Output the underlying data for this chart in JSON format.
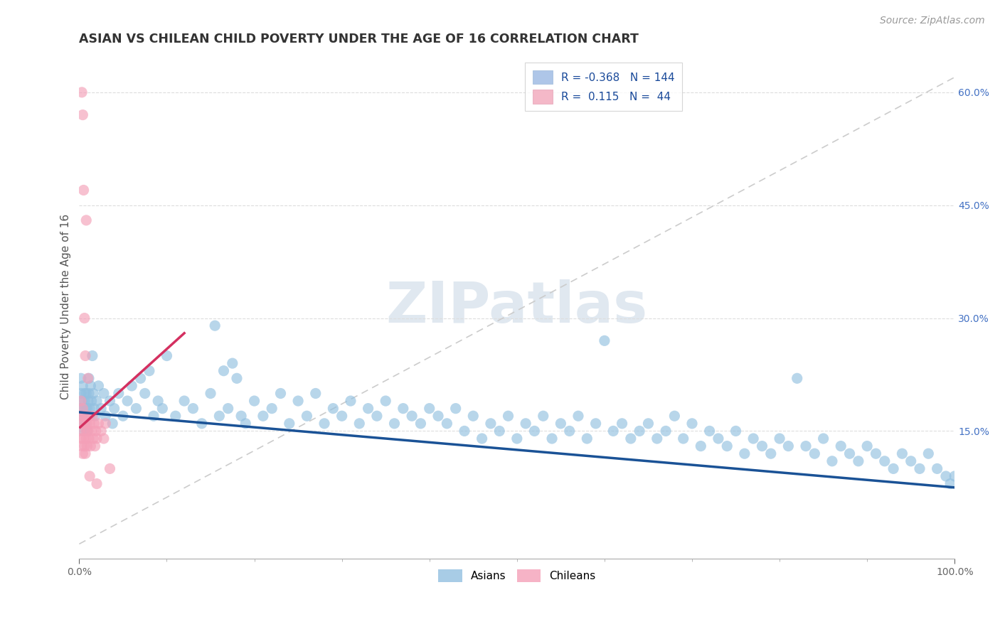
{
  "title": "ASIAN VS CHILEAN CHILD POVERTY UNDER THE AGE OF 16 CORRELATION CHART",
  "source": "Source: ZipAtlas.com",
  "ylabel": "Child Poverty Under the Age of 16",
  "xlim": [
    0.0,
    1.0
  ],
  "ylim": [
    -0.02,
    0.65
  ],
  "x_ticks": [
    0.0,
    1.0
  ],
  "x_tick_labels": [
    "0.0%",
    "100.0%"
  ],
  "y_ticks_right": [
    0.15,
    0.3,
    0.45,
    0.6
  ],
  "y_tick_labels_right": [
    "15.0%",
    "30.0%",
    "45.0%",
    "60.0%"
  ],
  "watermark_text": "ZIPatlas",
  "blue_dot_color": "#92c0e0",
  "pink_dot_color": "#f4a0b8",
  "blue_line_color": "#1a5296",
  "pink_line_color": "#d43060",
  "dashed_line_color": "#cccccc",
  "background_color": "#ffffff",
  "dot_alpha": 0.65,
  "dot_size": 120,
  "title_fontsize": 12.5,
  "source_fontsize": 10,
  "axis_label_fontsize": 11,
  "tick_fontsize": 10,
  "legend_fontsize": 11,
  "asian_x": [
    0.001,
    0.002,
    0.002,
    0.003,
    0.003,
    0.004,
    0.004,
    0.005,
    0.005,
    0.006,
    0.006,
    0.007,
    0.007,
    0.008,
    0.008,
    0.009,
    0.009,
    0.01,
    0.01,
    0.011,
    0.011,
    0.012,
    0.012,
    0.013,
    0.014,
    0.015,
    0.016,
    0.017,
    0.018,
    0.02,
    0.022,
    0.025,
    0.028,
    0.03,
    0.035,
    0.038,
    0.04,
    0.045,
    0.05,
    0.055,
    0.06,
    0.065,
    0.07,
    0.075,
    0.08,
    0.085,
    0.09,
    0.095,
    0.1,
    0.11,
    0.12,
    0.13,
    0.14,
    0.15,
    0.16,
    0.17,
    0.18,
    0.19,
    0.2,
    0.21,
    0.22,
    0.23,
    0.24,
    0.25,
    0.26,
    0.27,
    0.28,
    0.29,
    0.3,
    0.31,
    0.32,
    0.33,
    0.34,
    0.35,
    0.36,
    0.37,
    0.38,
    0.39,
    0.4,
    0.41,
    0.42,
    0.43,
    0.44,
    0.45,
    0.46,
    0.47,
    0.48,
    0.49,
    0.5,
    0.51,
    0.52,
    0.53,
    0.54,
    0.55,
    0.56,
    0.57,
    0.58,
    0.59,
    0.6,
    0.61,
    0.62,
    0.63,
    0.64,
    0.65,
    0.66,
    0.67,
    0.68,
    0.69,
    0.7,
    0.71,
    0.72,
    0.73,
    0.74,
    0.75,
    0.76,
    0.77,
    0.78,
    0.79,
    0.8,
    0.81,
    0.82,
    0.83,
    0.84,
    0.85,
    0.86,
    0.87,
    0.88,
    0.89,
    0.9,
    0.91,
    0.92,
    0.93,
    0.94,
    0.95,
    0.96,
    0.97,
    0.98,
    0.99,
    0.995,
    1.0,
    0.155,
    0.165,
    0.175,
    0.185
  ],
  "asian_y": [
    0.18,
    0.22,
    0.2,
    0.19,
    0.16,
    0.21,
    0.18,
    0.17,
    0.15,
    0.2,
    0.19,
    0.16,
    0.18,
    0.17,
    0.2,
    0.15,
    0.18,
    0.17,
    0.19,
    0.22,
    0.2,
    0.18,
    0.17,
    0.21,
    0.19,
    0.25,
    0.2,
    0.18,
    0.17,
    0.19,
    0.21,
    0.18,
    0.2,
    0.17,
    0.19,
    0.16,
    0.18,
    0.2,
    0.17,
    0.19,
    0.21,
    0.18,
    0.22,
    0.2,
    0.23,
    0.17,
    0.19,
    0.18,
    0.25,
    0.17,
    0.19,
    0.18,
    0.16,
    0.2,
    0.17,
    0.18,
    0.22,
    0.16,
    0.19,
    0.17,
    0.18,
    0.2,
    0.16,
    0.19,
    0.17,
    0.2,
    0.16,
    0.18,
    0.17,
    0.19,
    0.16,
    0.18,
    0.17,
    0.19,
    0.16,
    0.18,
    0.17,
    0.16,
    0.18,
    0.17,
    0.16,
    0.18,
    0.15,
    0.17,
    0.14,
    0.16,
    0.15,
    0.17,
    0.14,
    0.16,
    0.15,
    0.17,
    0.14,
    0.16,
    0.15,
    0.17,
    0.14,
    0.16,
    0.27,
    0.15,
    0.16,
    0.14,
    0.15,
    0.16,
    0.14,
    0.15,
    0.17,
    0.14,
    0.16,
    0.13,
    0.15,
    0.14,
    0.13,
    0.15,
    0.12,
    0.14,
    0.13,
    0.12,
    0.14,
    0.13,
    0.22,
    0.13,
    0.12,
    0.14,
    0.11,
    0.13,
    0.12,
    0.11,
    0.13,
    0.12,
    0.11,
    0.1,
    0.12,
    0.11,
    0.1,
    0.12,
    0.1,
    0.09,
    0.08,
    0.09,
    0.29,
    0.23,
    0.24,
    0.17
  ],
  "chilean_x": [
    0.001,
    0.001,
    0.002,
    0.002,
    0.003,
    0.003,
    0.004,
    0.004,
    0.005,
    0.005,
    0.006,
    0.006,
    0.007,
    0.007,
    0.008,
    0.008,
    0.009,
    0.009,
    0.01,
    0.01,
    0.011,
    0.012,
    0.013,
    0.014,
    0.015,
    0.016,
    0.017,
    0.018,
    0.019,
    0.02,
    0.022,
    0.025,
    0.028,
    0.03,
    0.003,
    0.004,
    0.005,
    0.006,
    0.007,
    0.008,
    0.01,
    0.012,
    0.02,
    0.035
  ],
  "chilean_y": [
    0.17,
    0.15,
    0.19,
    0.14,
    0.16,
    0.13,
    0.18,
    0.12,
    0.17,
    0.14,
    0.16,
    0.13,
    0.17,
    0.12,
    0.15,
    0.14,
    0.16,
    0.13,
    0.17,
    0.15,
    0.14,
    0.16,
    0.13,
    0.15,
    0.17,
    0.14,
    0.16,
    0.13,
    0.15,
    0.14,
    0.16,
    0.15,
    0.14,
    0.16,
    0.6,
    0.57,
    0.47,
    0.3,
    0.25,
    0.43,
    0.22,
    0.09,
    0.08,
    0.1
  ],
  "chilean_line_x": [
    0.001,
    0.12
  ],
  "chilean_line_y": [
    0.155,
    0.28
  ],
  "blue_line_x": [
    0.0,
    1.0
  ],
  "blue_line_y": [
    0.175,
    0.075
  ],
  "ref_line_x": [
    0.0,
    1.0
  ],
  "ref_line_y": [
    0.0,
    0.62
  ]
}
